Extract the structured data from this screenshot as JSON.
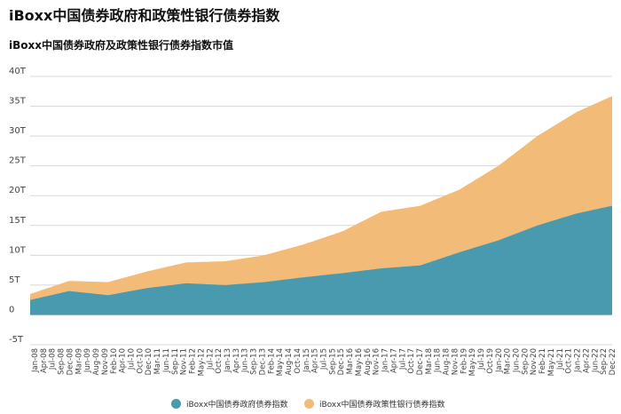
{
  "header": {
    "title": "iBoxx中国债券政府和政策性银行债券指数",
    "subtitle": "iBoxx中国债券政府及政策性银行债券指数市值"
  },
  "colors": {
    "government": "#4a9aaf",
    "policy_bank": "#f2bb77"
  },
  "chart_data": {
    "type": "area",
    "stacked": true,
    "title": "iBoxx中国债券政府及政策性银行债券指数市值",
    "xlabel": "",
    "ylabel": "",
    "ylim": [
      -5,
      40
    ],
    "y_ticks": [
      "40T",
      "35T",
      "30T",
      "25T",
      "20T",
      "15T",
      "10T",
      "5T",
      "0",
      "-5T"
    ],
    "y_tick_values": [
      40,
      35,
      30,
      25,
      20,
      15,
      10,
      5,
      0,
      -5
    ],
    "x_tick_labels": [
      "Jan-08",
      "Apr-08",
      "Jul-08",
      "Sep-08",
      "Dec-08",
      "Mar-09",
      "Jun-09",
      "Aug-09",
      "Nov-09",
      "Feb-10",
      "Apr-10",
      "Jul-10",
      "Oct-10",
      "Dec-10",
      "Mar-11",
      "Jun-11",
      "Sep-11",
      "Nov-11",
      "Feb-12",
      "May-12",
      "Jul-12",
      "Oct-12",
      "Jan-13",
      "Apr-13",
      "Jun-13",
      "Sep-13",
      "Dec-13",
      "Feb-14",
      "May-14",
      "Aug-14",
      "Oct-14",
      "Jan-15",
      "Apr-15",
      "Jul-15",
      "Sep-15",
      "Dec-15",
      "Mar-16",
      "May-16",
      "Aug-16",
      "Nov-16",
      "Jan-17",
      "Apr-17",
      "Jul-17",
      "Oct-17",
      "Dec-17",
      "Mar-18",
      "Jun-18",
      "Aug-18",
      "Nov-18",
      "Feb-19",
      "May-19",
      "Jul-19",
      "Oct-19",
      "Jan-20",
      "Mar-20",
      "Jun-20",
      "Sep-20",
      "Nov-20",
      "Feb-21",
      "May-21",
      "Jul-21",
      "Oct-21",
      "Jan-22",
      "Apr-22",
      "Jun-22",
      "Sep-22",
      "Dec-22"
    ],
    "x": [
      "Jan-08",
      "Jan-09",
      "Jan-10",
      "Jan-11",
      "Jan-12",
      "Jan-13",
      "Jan-14",
      "Jan-15",
      "Jan-16",
      "Jan-17",
      "Jan-18",
      "Jan-19",
      "Jan-20",
      "Jan-21",
      "Jan-22",
      "Dec-22"
    ],
    "series": [
      {
        "name": "iBoxx中国债券政府债券指数",
        "values": [
          2.5,
          4.0,
          3.3,
          4.5,
          5.3,
          5.0,
          5.5,
          6.3,
          7.0,
          7.8,
          8.3,
          10.5,
          12.5,
          15.0,
          17.0,
          18.3
        ]
      },
      {
        "name": "iBoxx中国债券政策性银行债券指数",
        "values": [
          1.0,
          1.7,
          2.2,
          2.8,
          3.5,
          4.0,
          4.5,
          5.5,
          7.0,
          9.5,
          10.0,
          10.5,
          12.5,
          15.0,
          17.0,
          18.4
        ]
      }
    ],
    "legend_position": "bottom",
    "grid": true
  }
}
